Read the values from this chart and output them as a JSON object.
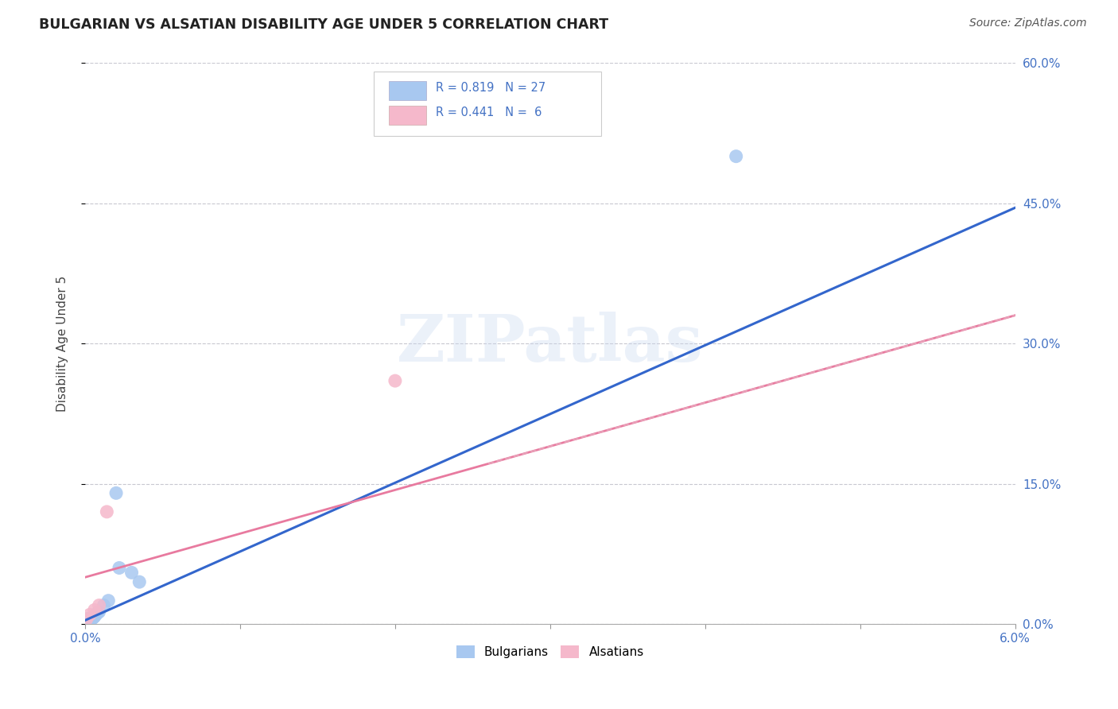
{
  "title": "BULGARIAN VS ALSATIAN DISABILITY AGE UNDER 5 CORRELATION CHART",
  "source": "Source: ZipAtlas.com",
  "ylabel": "Disability Age Under 5",
  "xlim": [
    0.0,
    0.06
  ],
  "ylim": [
    0.0,
    0.6
  ],
  "bulgarian_R": 0.819,
  "bulgarian_N": 27,
  "alsatian_R": 0.441,
  "alsatian_N": 6,
  "bulgarian_color": "#a8c8f0",
  "alsatian_color": "#f5b8cb",
  "bulgarian_line_color": "#3366cc",
  "alsatian_line_solid_color": "#e87a9f",
  "alsatian_line_dash_color": "#e8a0b8",
  "watermark_text": "ZIPatlas",
  "bg_color": "#ffffff",
  "grid_color": "#c8c8d0",
  "tick_color": "#4472c4",
  "title_color": "#222222",
  "ylabel_color": "#444444",
  "bulgarian_x": [
    8e-05,
    0.0001,
    0.00012,
    0.00015,
    0.00018,
    0.0002,
    0.00022,
    0.00025,
    0.00028,
    0.0003,
    0.00033,
    0.00036,
    0.0004,
    0.00045,
    0.0005,
    0.00055,
    0.0006,
    0.0007,
    0.0008,
    0.0009,
    0.0012,
    0.0015,
    0.002,
    0.0022,
    0.003,
    0.0035,
    0.042
  ],
  "bulgarian_y": [
    0.005,
    0.005,
    0.005,
    0.005,
    0.004,
    0.005,
    0.005,
    0.004,
    0.005,
    0.005,
    0.004,
    0.005,
    0.005,
    0.006,
    0.007,
    0.007,
    0.008,
    0.01,
    0.012,
    0.013,
    0.02,
    0.025,
    0.14,
    0.06,
    0.055,
    0.045,
    0.5
  ],
  "alsatian_x": [
    8e-05,
    0.0003,
    0.0006,
    0.0009,
    0.0014,
    0.02
  ],
  "alsatian_y": [
    0.005,
    0.01,
    0.015,
    0.02,
    0.12,
    0.26
  ],
  "bulg_line_x0": 0.0,
  "bulg_line_y0": 0.004,
  "bulg_line_x1": 0.06,
  "bulg_line_y1": 0.445,
  "als_line_x0": 0.0,
  "als_line_y0": 0.05,
  "als_line_x1": 0.06,
  "als_line_y1": 0.33
}
